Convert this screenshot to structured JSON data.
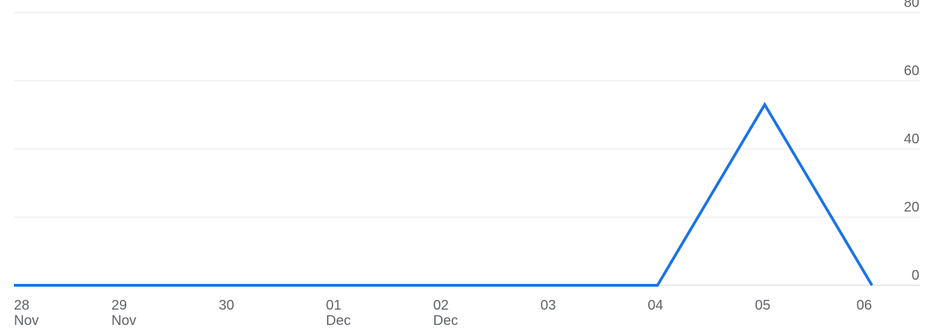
{
  "chart_data": {
    "type": "line",
    "title": "",
    "xlabel": "",
    "ylabel": "",
    "x": [
      "28 Nov",
      "29 Nov",
      "30",
      "01 Dec",
      "02 Dec",
      "03",
      "04",
      "05",
      "06"
    ],
    "x_tick_labels": [
      {
        "day": "28",
        "month": "Nov"
      },
      {
        "day": "29",
        "month": "Nov"
      },
      {
        "day": "30",
        "month": ""
      },
      {
        "day": "01",
        "month": "Dec"
      },
      {
        "day": "02",
        "month": "Dec"
      },
      {
        "day": "03",
        "month": ""
      },
      {
        "day": "04",
        "month": ""
      },
      {
        "day": "05",
        "month": ""
      },
      {
        "day": "06",
        "month": ""
      }
    ],
    "series": [
      {
        "values": [
          0,
          0,
          0,
          0,
          0,
          0,
          0,
          53,
          0
        ],
        "color": "#1a73e8"
      }
    ],
    "y_ticks": [
      0,
      20,
      40,
      60,
      80
    ],
    "ylim": [
      0,
      80
    ],
    "y_axis_side": "right",
    "grid": true,
    "legend": "none"
  }
}
